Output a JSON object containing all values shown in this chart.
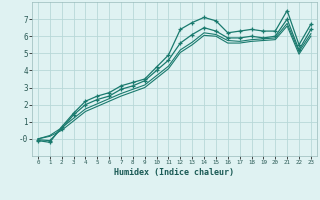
{
  "xlabel": "Humidex (Indice chaleur)",
  "bg_color": "#dff2f2",
  "grid_color": "#b8d8d8",
  "line_color": "#1a7a6e",
  "x_values": [
    0,
    1,
    2,
    3,
    4,
    5,
    6,
    7,
    8,
    9,
    10,
    11,
    12,
    13,
    14,
    15,
    16,
    17,
    18,
    19,
    20,
    21,
    22,
    23
  ],
  "series1": [
    -0.1,
    -0.2,
    0.7,
    1.5,
    2.2,
    2.5,
    2.7,
    3.1,
    3.3,
    3.5,
    4.2,
    4.9,
    6.4,
    6.8,
    7.1,
    6.9,
    6.2,
    6.3,
    6.4,
    6.3,
    6.3,
    7.5,
    5.5,
    6.7
  ],
  "series2": [
    -0.05,
    -0.1,
    0.6,
    1.4,
    2.0,
    2.3,
    2.5,
    2.9,
    3.1,
    3.4,
    4.0,
    4.6,
    5.6,
    6.1,
    6.5,
    6.3,
    5.9,
    5.9,
    6.0,
    5.9,
    6.0,
    7.0,
    5.2,
    6.4
  ],
  "series3": [
    0.0,
    0.15,
    0.5,
    1.05,
    1.6,
    1.9,
    2.2,
    2.5,
    2.75,
    3.0,
    3.55,
    4.1,
    5.05,
    5.5,
    6.05,
    6.0,
    5.6,
    5.6,
    5.7,
    5.75,
    5.8,
    6.6,
    4.95,
    6.0
  ],
  "series4": [
    0.0,
    0.2,
    0.65,
    1.2,
    1.75,
    2.05,
    2.35,
    2.65,
    2.9,
    3.15,
    3.7,
    4.25,
    5.2,
    5.65,
    6.2,
    6.1,
    5.75,
    5.7,
    5.8,
    5.85,
    5.9,
    6.75,
    5.1,
    6.15
  ],
  "ylim": [
    -1,
    8
  ],
  "xlim": [
    -0.5,
    23.5
  ],
  "yticks": [
    0,
    1,
    2,
    3,
    4,
    5,
    6,
    7
  ],
  "ytick_labels": [
    "-0",
    "1",
    "2",
    "3",
    "4",
    "5",
    "6",
    "7"
  ],
  "xticks": [
    0,
    1,
    2,
    3,
    4,
    5,
    6,
    7,
    8,
    9,
    10,
    11,
    12,
    13,
    14,
    15,
    16,
    17,
    18,
    19,
    20,
    21,
    22,
    23
  ]
}
